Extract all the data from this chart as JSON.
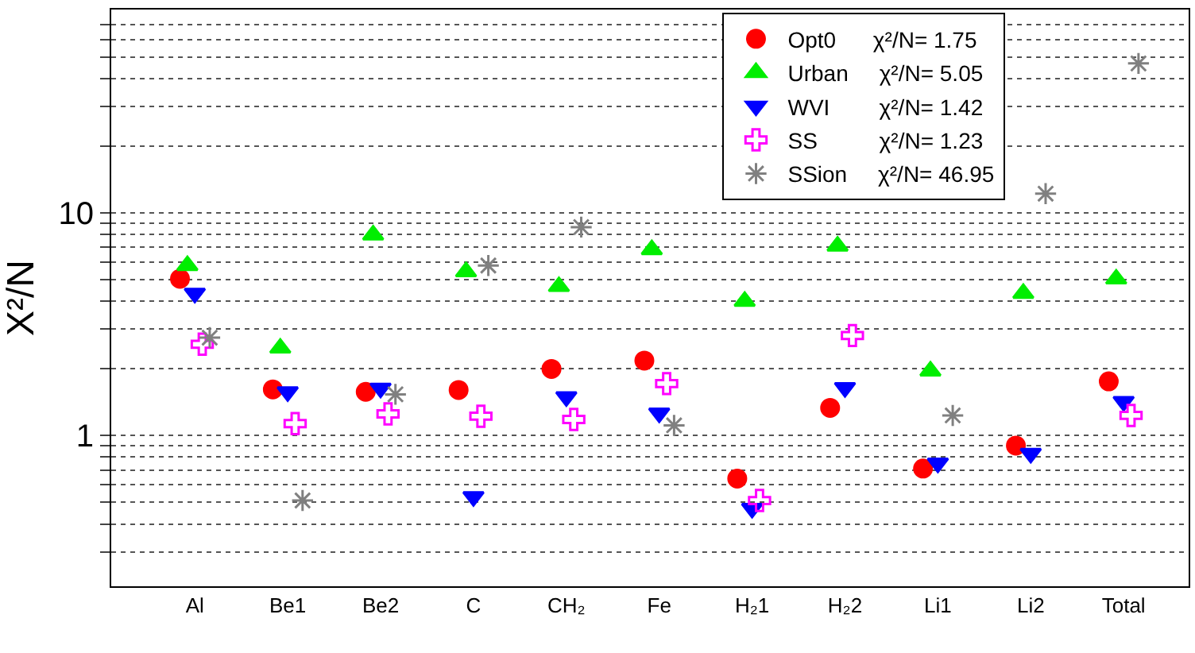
{
  "chart_data": {
    "type": "scatter",
    "ylabel": "X²/N",
    "categories": [
      "Al",
      "Be1",
      "Be2",
      "C",
      "CH₂",
      "Fe",
      "H₂1",
      "H₂2",
      "Li1",
      "Li2",
      "Total"
    ],
    "series": [
      {
        "name": "Opt0      χ²/N= 1.75",
        "color": "#ff0000",
        "marker": "circle",
        "values": [
          5.06,
          1.61,
          1.57,
          1.6,
          1.99,
          2.17,
          0.64,
          1.33,
          0.71,
          0.9,
          1.75
        ]
      },
      {
        "name": "Urban     χ²/N= 5.05",
        "color": "#00ee00",
        "marker": "triangle",
        "values": [
          5.8,
          2.47,
          7.96,
          5.44,
          4.67,
          6.84,
          4.01,
          7.1,
          1.95,
          4.35,
          5.05
        ]
      },
      {
        "name": "WVI        χ²/N= 1.42",
        "color": "#0000ff",
        "marker": "triangle-down",
        "values": [
          4.35,
          1.57,
          1.63,
          0.53,
          1.49,
          1.26,
          0.47,
          1.64,
          0.75,
          0.83,
          1.42
        ]
      },
      {
        "name": "SS          χ²/N= 1.23",
        "color": "#ff00ff",
        "marker": "cross",
        "values": [
          2.57,
          1.13,
          1.25,
          1.22,
          1.18,
          1.71,
          0.51,
          2.81,
          null,
          null,
          1.23
        ]
      },
      {
        "name": "SSion     χ²/N= 46.95",
        "color": "#808080",
        "marker": "cross",
        "values": [
          2.75,
          0.51,
          1.53,
          5.8,
          8.63,
          1.11,
          null,
          null,
          1.23,
          12.2,
          46.95
        ]
      }
    ],
    "log": "y",
    "ylim": [
      0.21,
      82
    ],
    "yticks": [
      {
        "value": 0.3,
        "label": null
      },
      {
        "value": 0.4,
        "label": null
      },
      {
        "value": 0.5,
        "label": null
      },
      {
        "value": 0.6,
        "label": null
      },
      {
        "value": 0.7,
        "label": null
      },
      {
        "value": 0.8,
        "label": null
      },
      {
        "value": 0.9,
        "label": null
      },
      1,
      {
        "value": 2,
        "label": null
      },
      {
        "value": 3,
        "label": null
      },
      {
        "value": 4,
        "label": null
      },
      {
        "value": 5,
        "label": null
      },
      {
        "value": 6,
        "label": null
      },
      {
        "value": 7,
        "label": null
      },
      {
        "value": 8,
        "label": null
      },
      {
        "value": 9,
        "label": null
      },
      10,
      {
        "value": 20,
        "label": null
      },
      {
        "value": 30,
        "label": null
      },
      {
        "value": 40,
        "label": null
      },
      {
        "value": 50,
        "label": null
      },
      {
        "value": 60,
        "label": null
      },
      {
        "value": 70,
        "label": null
      }
    ],
    "grid": "y",
    "legend": "top right"
  }
}
